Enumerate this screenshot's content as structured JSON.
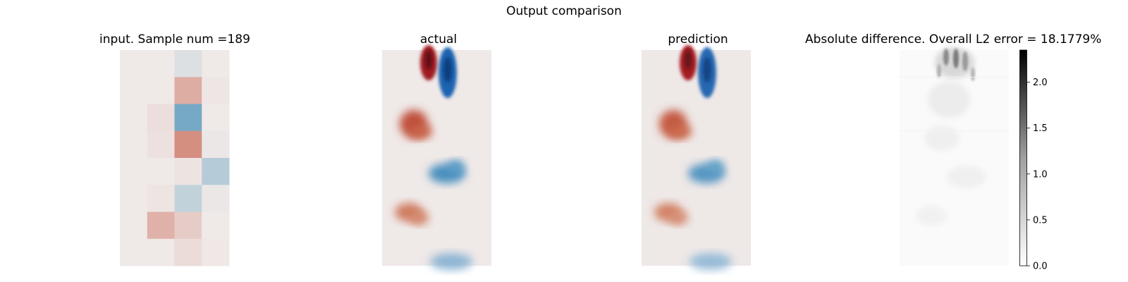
{
  "figure": {
    "suptitle": "Output comparison"
  },
  "chart_data": [
    {
      "type": "heatmap",
      "title": "input. Sample num =189",
      "colormap": "diverging (blue-white-red)",
      "rows": 8,
      "cols": 4,
      "values": [
        [
          0.0,
          0.0,
          -0.12,
          0.0
        ],
        [
          0.0,
          0.0,
          0.45,
          0.02
        ],
        [
          0.0,
          0.08,
          -0.82,
          0.0
        ],
        [
          0.0,
          0.06,
          0.68,
          -0.02
        ],
        [
          0.0,
          0.0,
          0.04,
          -0.38
        ],
        [
          0.0,
          0.03,
          -0.3,
          -0.03
        ],
        [
          0.0,
          0.42,
          0.22,
          0.0
        ],
        [
          0.0,
          0.0,
          0.1,
          0.01
        ]
      ]
    },
    {
      "type": "heatmap",
      "title": "actual",
      "colormap": "diverging (blue-white-red)"
    },
    {
      "type": "heatmap",
      "title": "prediction",
      "colormap": "diverging (blue-white-red)"
    },
    {
      "type": "heatmap",
      "title": "Absolute difference. Overall L2 error = 18.1779%",
      "colormap": "greys",
      "colorbar": {
        "range": [
          0.0,
          2.35
        ],
        "ticks": [
          "0.0",
          "0.5",
          "1.0",
          "1.5",
          "2.0"
        ],
        "tick_values": [
          0.0,
          0.5,
          1.0,
          1.5,
          2.0
        ]
      }
    }
  ]
}
